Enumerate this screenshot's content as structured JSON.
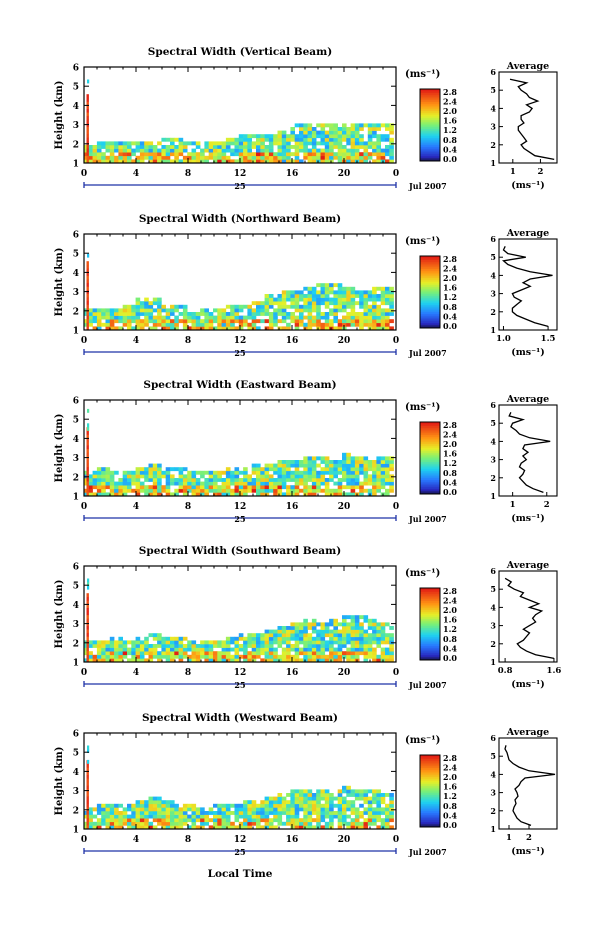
{
  "figure": {
    "y_axis_label": "Height (km)",
    "bottom_label": "Local Time",
    "date_day": "25",
    "date_label": "Jul 2007",
    "colorbar_unit": "(ms⁻¹)",
    "average_title": "Average",
    "average_xlabel": "(ms⁻¹)"
  },
  "chart_data": [
    {
      "type": "heatmap",
      "title": "Spectral Width (Vertical Beam)",
      "xlabel": "Local Time",
      "ylabel": "Height (km)",
      "x_ticks": [
        "0",
        "4",
        "8",
        "12",
        "16",
        "20",
        "0"
      ],
      "xlim": [
        0,
        24
      ],
      "y_ticks": [
        "1",
        "2",
        "3",
        "4",
        "5",
        "6"
      ],
      "ylim": [
        1,
        6
      ],
      "colorbar_ticks": [
        "0.0",
        "0.4",
        "0.8",
        "1.2",
        "1.6",
        "2.0",
        "2.4",
        "2.8"
      ],
      "clim": [
        0,
        3.0
      ],
      "echo_top_km": [
        1.9,
        2.0,
        2.0,
        2.0,
        2.1,
        2.1,
        2.3,
        2.2,
        2.0,
        2.0,
        2.1,
        2.3,
        2.4,
        2.4,
        2.4,
        2.5,
        2.9,
        2.9,
        2.9,
        3.0,
        3.0,
        3.0,
        3.0,
        3.0
      ],
      "average": {
        "x_ticks": [
          "1",
          "2"
        ],
        "xlim": [
          0.5,
          2.6
        ],
        "ylim": [
          1,
          6
        ],
        "heights": [
          1.2,
          1.4,
          1.6,
          1.8,
          2.0,
          2.2,
          2.4,
          2.6,
          2.8,
          3.0,
          3.2,
          3.4,
          3.6,
          3.8,
          4.0,
          4.2,
          4.4,
          4.6,
          4.8,
          5.0,
          5.2,
          5.4,
          5.6
        ],
        "values": [
          2.5,
          1.8,
          1.6,
          1.4,
          1.3,
          1.5,
          1.4,
          1.3,
          1.2,
          1.2,
          1.4,
          1.3,
          1.3,
          1.6,
          1.7,
          1.5,
          1.9,
          1.6,
          1.5,
          1.3,
          1.2,
          1.5,
          0.9
        ]
      }
    },
    {
      "type": "heatmap",
      "title": "Spectral Width (Northward Beam)",
      "xlabel": "Local Time",
      "ylabel": "Height (km)",
      "x_ticks": [
        "0",
        "4",
        "8",
        "12",
        "16",
        "20",
        "0"
      ],
      "xlim": [
        0,
        24
      ],
      "y_ticks": [
        "1",
        "2",
        "3",
        "4",
        "5",
        "6"
      ],
      "ylim": [
        1,
        6
      ],
      "colorbar_ticks": [
        "0.0",
        "0.4",
        "0.8",
        "1.2",
        "1.6",
        "2.0",
        "2.4",
        "2.8"
      ],
      "clim": [
        0,
        3.0
      ],
      "echo_top_km": [
        2.0,
        2.1,
        2.1,
        2.2,
        2.6,
        2.6,
        2.3,
        2.2,
        2.1,
        2.1,
        2.1,
        2.2,
        2.3,
        2.5,
        2.8,
        2.9,
        3.0,
        3.1,
        3.3,
        3.4,
        3.1,
        3.0,
        3.2,
        3.1
      ],
      "average": {
        "x_ticks": [
          "1.0",
          "1.5"
        ],
        "xlim": [
          0.95,
          1.6
        ],
        "ylim": [
          1,
          6
        ],
        "heights": [
          1.2,
          1.4,
          1.6,
          1.8,
          2.0,
          2.2,
          2.4,
          2.6,
          2.8,
          3.0,
          3.2,
          3.4,
          3.6,
          3.8,
          4.0,
          4.2,
          4.4,
          4.6,
          4.8,
          5.0,
          5.2,
          5.4,
          5.6
        ],
        "values": [
          1.5,
          1.35,
          1.25,
          1.15,
          1.1,
          1.1,
          1.15,
          1.2,
          1.12,
          1.1,
          1.2,
          1.3,
          1.22,
          1.3,
          1.55,
          1.3,
          1.15,
          1.05,
          1.0,
          1.25,
          1.05,
          1.0,
          1.02
        ]
      }
    },
    {
      "type": "heatmap",
      "title": "Spectral Width (Eastward Beam)",
      "xlabel": "Local Time",
      "ylabel": "Height (km)",
      "x_ticks": [
        "0",
        "4",
        "8",
        "12",
        "16",
        "20",
        "0"
      ],
      "xlim": [
        0,
        24
      ],
      "y_ticks": [
        "1",
        "2",
        "3",
        "4",
        "5",
        "6"
      ],
      "ylim": [
        1,
        6
      ],
      "colorbar_ticks": [
        "0.0",
        "0.4",
        "0.8",
        "1.2",
        "1.6",
        "2.0",
        "2.4",
        "2.8"
      ],
      "clim": [
        0,
        3.0
      ],
      "echo_top_km": [
        2.2,
        2.4,
        2.3,
        2.3,
        2.4,
        2.6,
        2.4,
        2.4,
        2.3,
        2.3,
        2.2,
        2.4,
        2.5,
        2.6,
        2.6,
        2.7,
        2.8,
        3.0,
        3.0,
        2.8,
        3.1,
        3.0,
        2.9,
        2.9
      ],
      "average": {
        "x_ticks": [
          "1",
          "2"
        ],
        "xlim": [
          0.6,
          2.3
        ],
        "ylim": [
          1,
          6
        ],
        "heights": [
          1.2,
          1.4,
          1.6,
          1.8,
          2.0,
          2.2,
          2.4,
          2.6,
          2.8,
          3.0,
          3.2,
          3.4,
          3.6,
          3.8,
          4.0,
          4.2,
          4.4,
          4.6,
          4.8,
          5.0,
          5.2,
          5.4,
          5.6
        ],
        "values": [
          1.9,
          1.6,
          1.4,
          1.3,
          1.2,
          1.3,
          1.35,
          1.2,
          1.25,
          1.4,
          1.3,
          1.45,
          1.3,
          1.35,
          2.1,
          1.5,
          1.2,
          1.1,
          0.95,
          1.0,
          1.3,
          0.9,
          0.95
        ]
      }
    },
    {
      "type": "heatmap",
      "title": "Spectral Width (Southward Beam)",
      "xlabel": "Local Time",
      "ylabel": "Height (km)",
      "x_ticks": [
        "0",
        "4",
        "8",
        "12",
        "16",
        "20",
        "0"
      ],
      "xlim": [
        0,
        24
      ],
      "y_ticks": [
        "1",
        "2",
        "3",
        "4",
        "5",
        "6"
      ],
      "ylim": [
        1,
        6
      ],
      "colorbar_ticks": [
        "0.0",
        "0.4",
        "0.8",
        "1.2",
        "1.6",
        "2.0",
        "2.4",
        "2.8"
      ],
      "clim": [
        0,
        3.0
      ],
      "echo_top_km": [
        2.0,
        2.1,
        2.2,
        2.1,
        2.3,
        2.5,
        2.3,
        2.2,
        2.1,
        2.1,
        2.1,
        2.3,
        2.4,
        2.5,
        2.6,
        2.8,
        3.0,
        3.1,
        3.0,
        3.2,
        3.3,
        3.4,
        3.2,
        3.0
      ],
      "average": {
        "x_ticks": [
          "0.8",
          "1.6"
        ],
        "xlim": [
          0.7,
          1.65
        ],
        "ylim": [
          1,
          6
        ],
        "heights": [
          1.2,
          1.4,
          1.6,
          1.8,
          2.0,
          2.2,
          2.4,
          2.6,
          2.8,
          3.0,
          3.2,
          3.4,
          3.6,
          3.8,
          4.0,
          4.2,
          4.4,
          4.6,
          4.8,
          5.0,
          5.2,
          5.4,
          5.6
        ],
        "values": [
          1.6,
          1.3,
          1.15,
          1.05,
          1.0,
          1.1,
          1.15,
          1.2,
          1.1,
          1.2,
          1.3,
          1.25,
          1.3,
          1.4,
          1.2,
          1.35,
          1.2,
          1.05,
          1.1,
          0.95,
          0.85,
          0.9,
          0.8
        ]
      }
    },
    {
      "type": "heatmap",
      "title": "Spectral Width (Westward Beam)",
      "xlabel": "Local Time",
      "ylabel": "Height (km)",
      "x_ticks": [
        "0",
        "4",
        "8",
        "12",
        "16",
        "20",
        "0"
      ],
      "xlim": [
        0,
        24
      ],
      "y_ticks": [
        "1",
        "2",
        "3",
        "4",
        "5",
        "6"
      ],
      "ylim": [
        1,
        6
      ],
      "colorbar_ticks": [
        "0.0",
        "0.4",
        "0.8",
        "1.2",
        "1.6",
        "2.0",
        "2.4",
        "2.8"
      ],
      "clim": [
        0,
        3.0
      ],
      "echo_top_km": [
        2.0,
        2.2,
        2.2,
        2.2,
        2.4,
        2.6,
        2.4,
        2.3,
        2.2,
        2.1,
        2.2,
        2.3,
        2.4,
        2.5,
        2.6,
        2.8,
        2.9,
        3.0,
        3.0,
        2.9,
        3.1,
        3.0,
        2.9,
        2.8
      ],
      "average": {
        "x_ticks": [
          "1",
          "2"
        ],
        "xlim": [
          0.5,
          3.4
        ],
        "ylim": [
          1,
          6
        ],
        "heights": [
          1.2,
          1.4,
          1.6,
          1.8,
          2.0,
          2.2,
          2.4,
          2.6,
          2.8,
          3.0,
          3.2,
          3.4,
          3.6,
          3.8,
          4.0,
          4.2,
          4.4,
          4.6,
          4.8,
          5.0,
          5.2,
          5.4,
          5.6
        ],
        "values": [
          2.1,
          1.6,
          1.4,
          1.3,
          1.2,
          1.25,
          1.35,
          1.3,
          1.45,
          1.4,
          1.3,
          1.5,
          1.6,
          1.8,
          3.3,
          2.0,
          1.5,
          1.2,
          1.0,
          0.95,
          0.9,
          0.8,
          0.85
        ]
      }
    }
  ]
}
